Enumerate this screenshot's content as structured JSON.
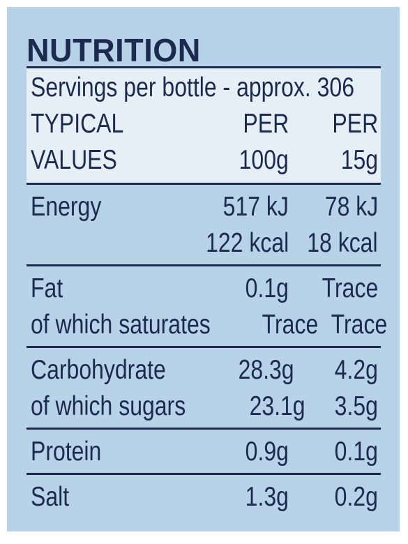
{
  "title": "NUTRITION",
  "servings": "Servings per bottle - approx. 306",
  "header": {
    "line1": {
      "label": "TYPICAL",
      "col1": "PER",
      "col2": "PER"
    },
    "line2": {
      "label": "VALUES",
      "col1": "100g",
      "col2": "15g"
    }
  },
  "sections": [
    {
      "rows": [
        {
          "name": "Energy",
          "per100": "517 kJ",
          "perServing": "78 kJ"
        },
        {
          "name": "",
          "per100": "122 kcal",
          "perServing": "18 kcal"
        }
      ]
    },
    {
      "rows": [
        {
          "name": "Fat",
          "per100": "0.1g",
          "perServing": "Trace"
        },
        {
          "name": "of which saturates",
          "per100": "Trace",
          "perServing": "Trace"
        }
      ]
    },
    {
      "rows": [
        {
          "name": "Carbohydrate",
          "per100": "28.3g",
          "perServing": "4.2g"
        },
        {
          "name": "of which sugars",
          "per100": "23.1g",
          "perServing": "3.5g"
        }
      ]
    },
    {
      "rows": [
        {
          "name": "Protein",
          "per100": "0.9g",
          "perServing": "0.1g"
        }
      ]
    },
    {
      "rows": [
        {
          "name": "Salt",
          "per100": "1.3g",
          "perServing": "0.2g"
        }
      ]
    }
  ]
}
